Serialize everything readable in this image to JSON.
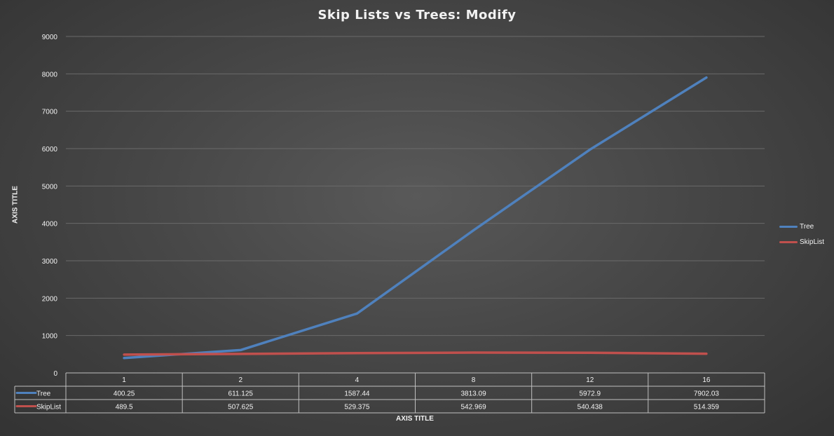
{
  "chart_data": {
    "type": "line",
    "title": "Skip Lists vs Trees: Modify",
    "xlabel": "AXIS TITLE",
    "ylabel": "AXIS TITLE",
    "categories": [
      "1",
      "2",
      "4",
      "8",
      "12",
      "16"
    ],
    "ylim": [
      0,
      9000
    ],
    "yticks": [
      0,
      1000,
      2000,
      3000,
      4000,
      5000,
      6000,
      7000,
      8000,
      9000
    ],
    "grid": true,
    "legend": "right",
    "data_table": true,
    "series": [
      {
        "name": "Tree",
        "color": "#4f81bd",
        "values": [
          400.25,
          611.125,
          1587.44,
          3813.09,
          5972.9,
          7902.03
        ],
        "labels": [
          "400.25",
          "611.125",
          "1587.44",
          "3813.09",
          "5972.9",
          "7902.03"
        ]
      },
      {
        "name": "SkipList",
        "color": "#c0504d",
        "values": [
          489.5,
          507.625,
          529.375,
          542.969,
          540.438,
          514.359
        ],
        "labels": [
          "489.5",
          "507.625",
          "529.375",
          "542.969",
          "540.438",
          "514.359"
        ]
      }
    ]
  }
}
